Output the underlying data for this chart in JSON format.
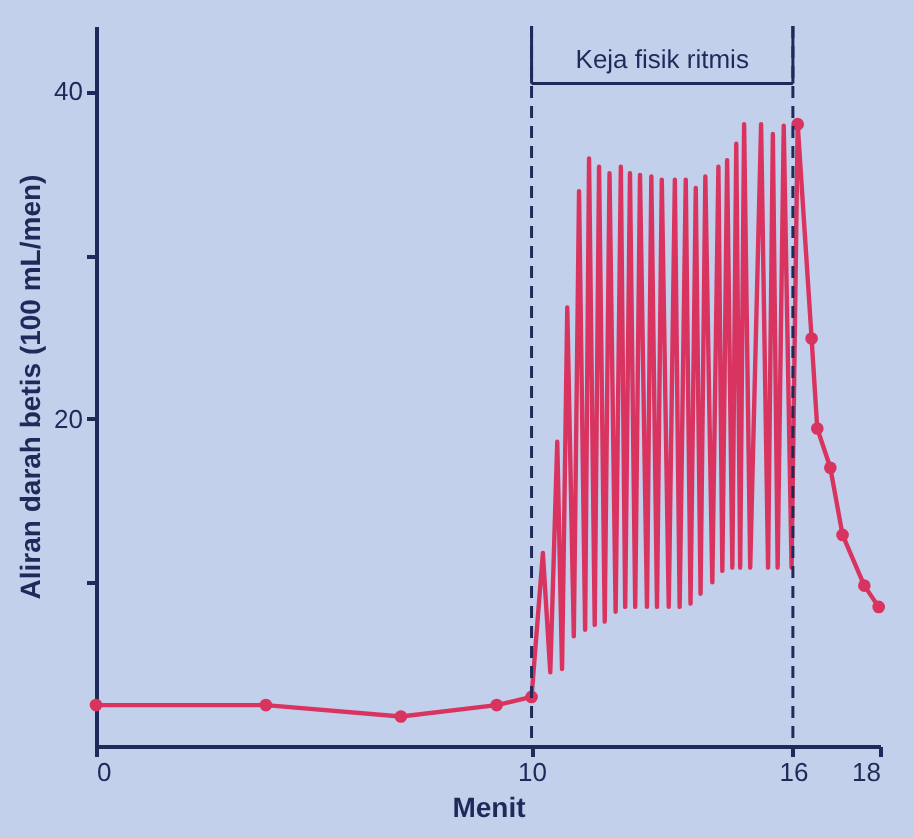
{
  "chart_data": {
    "type": "line",
    "xlabel": "Menit",
    "ylabel": "Aliran darah betis (100 mL/men)",
    "xlim": [
      0,
      18
    ],
    "xticks": [
      0,
      10,
      16,
      18
    ],
    "ylim": [
      0,
      44
    ],
    "yticks": [
      {
        "value": 10,
        "label": null
      },
      20,
      {
        "value": 30,
        "label": null
      },
      40
    ],
    "grid": false,
    "line_style": "solid",
    "series": [
      {
        "color": "#d9345f",
        "marker": "circle",
        "x": [
          0,
          3.9,
          7,
          9.2,
          10
        ],
        "values": [
          2.5,
          2.5,
          1.8,
          2.5,
          3
        ]
      },
      {
        "color": "#d9345f",
        "marker": "none",
        "x": [
          10,
          10.26,
          10.43,
          10.59,
          10.7,
          10.82,
          10.97,
          11.09,
          11.23,
          11.32,
          11.45,
          11.55,
          11.68,
          11.79,
          11.93,
          12.05,
          12.15,
          12.26,
          12.38,
          12.49,
          12.65,
          12.75,
          12.88,
          12.99,
          13.15,
          13.29,
          13.4,
          13.54,
          13.65,
          13.77,
          13.88,
          13.99,
          14.15,
          14.29,
          14.38,
          14.49,
          14.61,
          14.7,
          14.79,
          14.88,
          15.02,
          15.27,
          15.43,
          15.54,
          15.65,
          15.79,
          15.97,
          16.11
        ],
        "values": [
          3,
          11.8,
          4.5,
          18.6,
          4.7,
          26.8,
          6.7,
          33.9,
          7.1,
          35.9,
          7.4,
          35.4,
          7.6,
          35,
          8.2,
          35.4,
          8.5,
          35,
          8.5,
          34.9,
          8.5,
          34.8,
          8.5,
          34.6,
          8.5,
          34.6,
          8.5,
          34.6,
          8.7,
          34.1,
          9.3,
          34.8,
          10,
          35.4,
          10.7,
          35.8,
          10.9,
          36.8,
          10.9,
          38,
          10.9,
          38,
          10.9,
          37.4,
          10.9,
          37.9,
          10.9,
          38
        ]
      },
      {
        "color": "#d9345f",
        "marker": "circle",
        "x": [
          16.11,
          16.43,
          16.56,
          16.86,
          17.14,
          17.64,
          17.97
        ],
        "values": [
          38,
          24.9,
          19.4,
          17,
          12.9,
          9.8,
          8.5
        ]
      }
    ],
    "ref_lines": [
      {
        "axis": "x",
        "value": 10,
        "color": "#1f2a5a",
        "line_style": "dashed"
      },
      {
        "axis": "x",
        "value": 16,
        "color": "#1f2a5a",
        "line_style": "dashed"
      }
    ],
    "annotations": [
      "Keja fisik ritmis"
    ]
  }
}
